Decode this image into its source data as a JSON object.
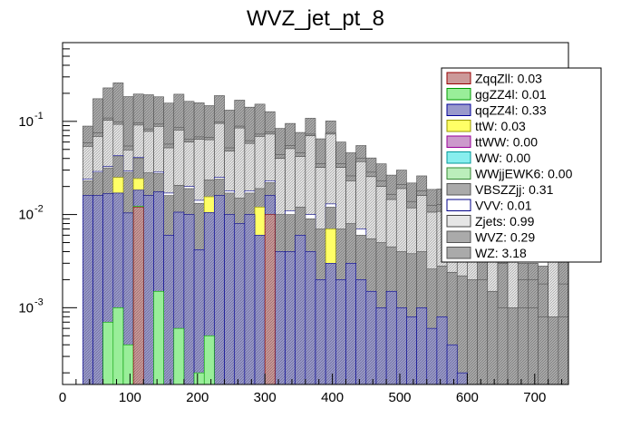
{
  "chart_data": {
    "type": "histogram-stacked",
    "title": "WVZ_jet_pt_8",
    "xlabel": "",
    "ylabel": "",
    "xlim": [
      0,
      750
    ],
    "ylim": [
      0.00015,
      0.7
    ],
    "yscale": "log",
    "bin_width": 15,
    "x_ticks": [
      0,
      100,
      200,
      300,
      400,
      500,
      600,
      700
    ],
    "x_tick_labels": [
      "0",
      "100",
      "200",
      "300",
      "400",
      "500",
      "600",
      "700"
    ],
    "y_ticks": [
      0.001,
      0.01,
      0.1
    ],
    "y_tick_labels": [
      {
        "base": "10",
        "exp": "-3"
      },
      {
        "base": "10",
        "exp": "-2"
      },
      {
        "base": "10",
        "exp": "-1"
      }
    ],
    "legend_position": "right",
    "series": [
      {
        "name": "ZqqZll",
        "label": "ZqqZll: 0.03",
        "fill": "#cc9999",
        "stroke": "#990000",
        "values": [
          0,
          0,
          0,
          0,
          0,
          0,
          0,
          0.012,
          0,
          0,
          0,
          0,
          0,
          0,
          0,
          0,
          0,
          0,
          0,
          0,
          0.01,
          0,
          0,
          0,
          0,
          0,
          0,
          0,
          0,
          0,
          0,
          0,
          0,
          0,
          0,
          0,
          0,
          0,
          0,
          0,
          0,
          0,
          0,
          0,
          0,
          0,
          0,
          0,
          0,
          0
        ]
      },
      {
        "name": "ggZZ4l",
        "label": "ggZZ4l: 0.01",
        "fill": "#99ee99",
        "stroke": "#009900",
        "values": [
          0,
          0,
          0,
          0,
          0.0007,
          0.001,
          0.0004,
          0.0003,
          0,
          0.0015,
          0,
          0.0006,
          0,
          0.0002,
          0.0005,
          0,
          0,
          0,
          0,
          0,
          0,
          0,
          0,
          0,
          0,
          0,
          0,
          0,
          0,
          0,
          0,
          0,
          0,
          0,
          0,
          0,
          0,
          0,
          0,
          0,
          0,
          0,
          0,
          0,
          0,
          0,
          0,
          0,
          0,
          0
        ]
      },
      {
        "name": "qqZZ4l",
        "label": "qqZZ4l: 0.33",
        "fill": "#9999cc",
        "stroke": "#000099",
        "values": [
          0,
          0,
          0.016,
          0.016,
          0.016,
          0.016,
          0.01,
          0.006,
          0.016,
          0.016,
          0.006,
          0.01,
          0.01,
          0.004,
          0.01,
          0.016,
          0.01,
          0.008,
          0.01,
          0.006,
          0.006,
          0.004,
          0.004,
          0.006,
          0.004,
          0.002,
          0.003,
          0.002,
          0.003,
          0.002,
          0.0015,
          0.001,
          0.0015,
          0.001,
          0.0008,
          0.001,
          0.0006,
          0.0008,
          0.0004,
          0.0002,
          0,
          0,
          0,
          0,
          0,
          0,
          0,
          0,
          0,
          0
        ]
      },
      {
        "name": "ttW",
        "label": "ttW: 0.03",
        "fill": "#ffff66",
        "stroke": "#999900",
        "values": [
          0,
          0,
          0,
          0,
          0,
          0.008,
          0,
          0.006,
          0,
          0,
          0,
          0,
          0,
          0,
          0.005,
          0,
          0,
          0,
          0,
          0.006,
          0,
          0,
          0,
          0,
          0,
          0,
          0.004,
          0,
          0,
          0,
          0,
          0,
          0,
          0,
          0,
          0,
          0,
          0,
          0,
          0,
          0,
          0,
          0,
          0,
          0,
          0,
          0,
          0,
          0,
          0
        ]
      },
      {
        "name": "ttWW",
        "label": "ttWW: 0.00",
        "fill": "#cc99cc",
        "stroke": "#990099",
        "values": [
          0,
          0,
          0,
          0,
          0,
          0,
          0,
          0,
          0,
          0,
          0,
          0,
          0,
          0,
          0,
          0,
          0,
          0,
          0,
          0,
          0,
          0,
          0,
          0,
          0,
          0,
          0,
          0,
          0,
          0,
          0,
          0,
          0,
          0,
          0,
          0,
          0,
          0,
          0,
          0,
          0,
          0,
          0,
          0,
          0,
          0,
          0,
          0,
          0,
          0
        ]
      },
      {
        "name": "WW",
        "label": "WW: 0.00",
        "fill": "#88eeee",
        "stroke": "#009999",
        "values": [
          0,
          0,
          0,
          0,
          0,
          0,
          0,
          0,
          0,
          0,
          0,
          0,
          0,
          0,
          0,
          0,
          0,
          0,
          0,
          0,
          0,
          0,
          0,
          0,
          0,
          0,
          0,
          0,
          0,
          0,
          0,
          0,
          0,
          0,
          0,
          0,
          0,
          0,
          0,
          0,
          0,
          0,
          0,
          0,
          0,
          0,
          0,
          0,
          0,
          0
        ]
      },
      {
        "name": "WWjjEWK6",
        "label": "WWjjEWK6: 0.00",
        "fill": "#bbeebb",
        "stroke": "#338833",
        "values": [
          0,
          0,
          0,
          0,
          0,
          0,
          0,
          0,
          0,
          0,
          0,
          0,
          0,
          0,
          0,
          0,
          0,
          0,
          0,
          0,
          0,
          0,
          0,
          0,
          0,
          0,
          0,
          0,
          0,
          0,
          0,
          0,
          0,
          0,
          0,
          0,
          0,
          0,
          0,
          0,
          0,
          0,
          0,
          0,
          0,
          0,
          0,
          0,
          0,
          0
        ]
      },
      {
        "name": "VBSZZjj",
        "label": "VBSZZjj: 0.31",
        "fill": "#aaaaaa",
        "stroke": "#555555",
        "values": [
          0,
          0,
          0.007,
          0.012,
          0.015,
          0.017,
          0.018,
          0.016,
          0.012,
          0.01,
          0.01,
          0.01,
          0.009,
          0.009,
          0.008,
          0.008,
          0.007,
          0.007,
          0.007,
          0.007,
          0.006,
          0.006,
          0.006,
          0.006,
          0.005,
          0.005,
          0.005,
          0.005,
          0.005,
          0.004,
          0.004,
          0.004,
          0.003,
          0.003,
          0.003,
          0.003,
          0.002,
          0.002,
          0.002,
          0.002,
          0.002,
          0.002,
          0.0015,
          0.001,
          0.001,
          0.001,
          0.001,
          0.0008,
          0.0008,
          0.0008
        ]
      },
      {
        "name": "VVV",
        "label": "VVV: 0.01",
        "fill": "#ffffff",
        "stroke": "#000088",
        "values": [
          0,
          0,
          0.001,
          0.001,
          0.001,
          0.001,
          0.001,
          0.001,
          0,
          0.001,
          0.001,
          0,
          0.001,
          0.001,
          0,
          0.001,
          0.001,
          0,
          0.001,
          0,
          0.001,
          0,
          0.001,
          0,
          0.001,
          0,
          0.001,
          0,
          0,
          0.001,
          0,
          0,
          0,
          0,
          0,
          0,
          0,
          0,
          0,
          0,
          0,
          0,
          0,
          0,
          0,
          0,
          0,
          0,
          0,
          0
        ]
      },
      {
        "name": "Zjets",
        "label": "Zjets: 0.99",
        "fill": "#e6e6e6",
        "stroke": "#444444",
        "values": [
          0,
          0,
          0.03,
          0.04,
          0.07,
          0.05,
          0.02,
          0.05,
          0.05,
          0.06,
          0.035,
          0.06,
          0.04,
          0.05,
          0.04,
          0.07,
          0.03,
          0.07,
          0.04,
          0.05,
          0.05,
          0.03,
          0.04,
          0.03,
          0.06,
          0.025,
          0.06,
          0.025,
          0.015,
          0.03,
          0.02,
          0.015,
          0.01,
          0.015,
          0.008,
          0.012,
          0.008,
          0.008,
          0.006,
          0.003,
          0.003,
          0,
          0.003,
          0,
          0.003,
          0,
          0,
          0,
          0.003,
          0
        ]
      },
      {
        "name": "WVZ",
        "label": "WVZ: 0.29",
        "fill": "#aaaaaa",
        "stroke": "#555555",
        "values": [
          0,
          0,
          0.005,
          0.006,
          0.006,
          0.006,
          0.005,
          0.005,
          0.005,
          0.005,
          0.005,
          0.005,
          0.004,
          0.004,
          0.004,
          0.004,
          0.004,
          0.004,
          0.004,
          0.004,
          0.004,
          0.004,
          0.004,
          0.004,
          0.003,
          0.003,
          0.003,
          0.003,
          0.003,
          0.003,
          0.003,
          0.003,
          0.002,
          0.002,
          0.002,
          0.002,
          0.002,
          0.002,
          0.002,
          0.002,
          0.002,
          0.002,
          0.002,
          0.002,
          0.002,
          0.001,
          0.001,
          0.001,
          0.001,
          0.001
        ]
      },
      {
        "name": "WZ",
        "label": "WZ: 3.18",
        "fill": "#aaaaaa",
        "stroke": "#555555",
        "values": [
          0,
          0,
          0.03,
          0.1,
          0.12,
          0.16,
          0.13,
          0.1,
          0.11,
          0.09,
          0.1,
          0.11,
          0.1,
          0.09,
          0.08,
          0.09,
          0.08,
          0.08,
          0.08,
          0.08,
          0.05,
          0.04,
          0.04,
          0.03,
          0.035,
          0.03,
          0.025,
          0.025,
          0.02,
          0.015,
          0.012,
          0.012,
          0.01,
          0.009,
          0.008,
          0.008,
          0.006,
          0.006,
          0.004,
          0.004,
          0.003,
          0.003,
          0.002,
          0.002,
          0.002,
          0.001,
          0.001,
          0.001,
          0.001,
          0.002
        ]
      }
    ]
  }
}
